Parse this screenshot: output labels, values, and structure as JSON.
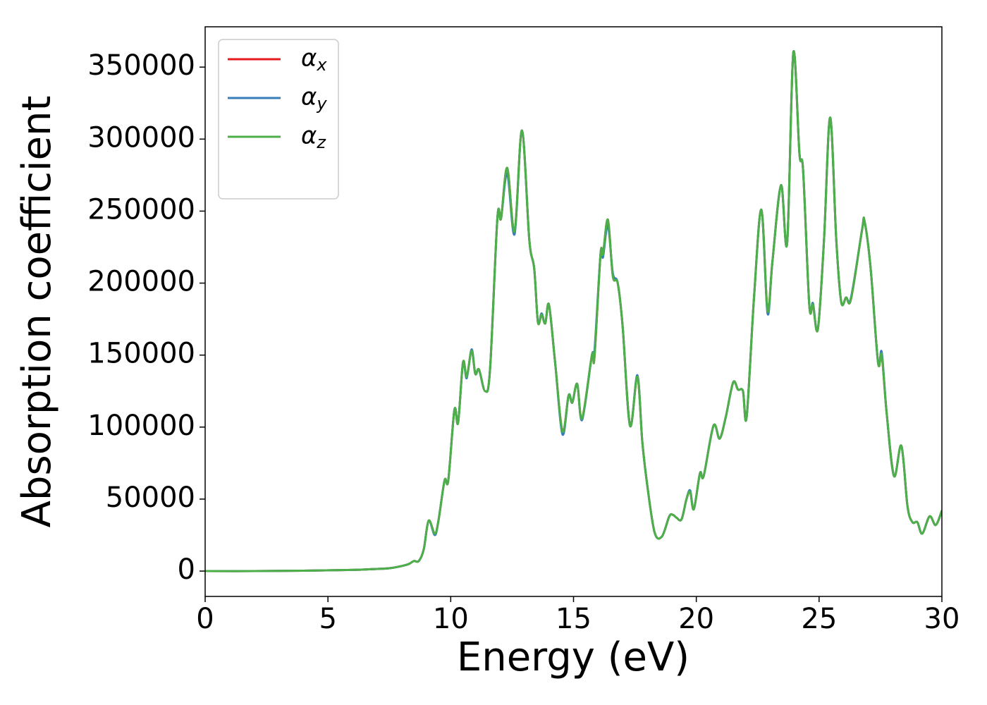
{
  "chart_data": {
    "type": "line",
    "xlabel": "Energy (eV)",
    "ylabel": "Absorption coefficient",
    "x": [
      0,
      2,
      4,
      6,
      7,
      7.5,
      8,
      8.3,
      8.5,
      8.7,
      8.9,
      9.1,
      9.35,
      9.5,
      9.75,
      9.9,
      10.15,
      10.3,
      10.5,
      10.65,
      10.85,
      11.0,
      11.15,
      11.4,
      11.6,
      11.9,
      12.05,
      12.3,
      12.6,
      12.9,
      13.2,
      13.4,
      13.55,
      13.7,
      13.85,
      14.0,
      14.25,
      14.55,
      14.8,
      14.95,
      15.15,
      15.35,
      15.75,
      15.85,
      16.1,
      16.2,
      16.4,
      16.6,
      16.8,
      17.0,
      17.3,
      17.6,
      17.8,
      18.0,
      18.3,
      18.6,
      18.9,
      19.05,
      19.2,
      19.4,
      19.6,
      19.75,
      19.9,
      20.15,
      20.3,
      20.7,
      20.95,
      21.2,
      21.5,
      21.7,
      21.9,
      22.05,
      22.35,
      22.65,
      22.9,
      23.1,
      23.45,
      23.7,
      23.95,
      24.2,
      24.35,
      24.6,
      24.75,
      24.95,
      25.2,
      25.45,
      25.7,
      25.9,
      26.1,
      26.3,
      26.75,
      26.85,
      27.1,
      27.4,
      27.55,
      27.75,
      28.05,
      28.35,
      28.6,
      28.8,
      29.0,
      29.2,
      29.5,
      29.75,
      30.0
    ],
    "series": [
      {
        "name": "αx",
        "color": "#e41a1c",
        "values": [
          0,
          0,
          300,
          800,
          1500,
          2000,
          3500,
          5000,
          7000,
          7000,
          15000,
          35000,
          26000,
          35000,
          63000,
          63000,
          112000,
          103000,
          145000,
          135000,
          153000,
          137000,
          140000,
          125000,
          140000,
          245000,
          245000,
          280000,
          236000,
          306000,
          230000,
          210000,
          173000,
          178000,
          172000,
          185000,
          145000,
          97000,
          122000,
          117000,
          130000,
          106000,
          150000,
          148000,
          220000,
          220000,
          244000,
          205000,
          200000,
          170000,
          101000,
          135000,
          90000,
          60000,
          27000,
          24000,
          38000,
          39000,
          37000,
          36000,
          50000,
          55000,
          43000,
          68000,
          66000,
          101000,
          92000,
          107000,
          131000,
          126000,
          125000,
          107000,
          190000,
          251000,
          181000,
          215000,
          268000,
          228000,
          360000,
          290000,
          278000,
          185000,
          185000,
          168000,
          230000,
          315000,
          230000,
          187000,
          190000,
          189000,
          237000,
          243000,
          210000,
          145000,
          150000,
          110000,
          66000,
          87000,
          45000,
          34000,
          34000,
          26000,
          38000,
          32000,
          42000
        ]
      },
      {
        "name": "αy",
        "color": "#377eb8",
        "values": [
          0,
          0,
          300,
          800,
          1500,
          2000,
          3500,
          5000,
          7000,
          7000,
          15000,
          35000,
          25000,
          35000,
          63000,
          63000,
          112000,
          103000,
          145000,
          134000,
          154000,
          137000,
          140000,
          125000,
          140000,
          245000,
          245000,
          276000,
          234000,
          306000,
          230000,
          210000,
          173000,
          179000,
          172000,
          185000,
          145000,
          95000,
          122000,
          117000,
          130000,
          105000,
          150000,
          152000,
          220000,
          218000,
          240000,
          207000,
          200000,
          170000,
          101000,
          136000,
          90000,
          60000,
          27000,
          24000,
          38000,
          39000,
          37000,
          36000,
          50000,
          56000,
          43000,
          68000,
          66000,
          101000,
          92000,
          107000,
          131000,
          126000,
          125000,
          107000,
          190000,
          251000,
          179000,
          215000,
          268000,
          228000,
          360000,
          290000,
          278000,
          185000,
          186000,
          168000,
          230000,
          315000,
          230000,
          187000,
          190000,
          190000,
          237000,
          243000,
          210000,
          145000,
          152000,
          110000,
          66000,
          87000,
          45000,
          34000,
          34000,
          26000,
          38000,
          32000,
          42000
        ]
      },
      {
        "name": "αz",
        "color": "#4daf4a",
        "values": [
          0,
          0,
          300,
          800,
          1500,
          2000,
          3500,
          5000,
          7000,
          7000,
          15000,
          35000,
          26000,
          35000,
          63000,
          63000,
          112000,
          103000,
          145000,
          135000,
          153000,
          137000,
          140000,
          125000,
          140000,
          245000,
          245000,
          280000,
          236000,
          306000,
          230000,
          210000,
          173000,
          178000,
          172000,
          185000,
          145000,
          97000,
          122000,
          117000,
          130000,
          106000,
          150000,
          148000,
          220000,
          220000,
          244000,
          205000,
          200000,
          170000,
          101000,
          135000,
          90000,
          60000,
          27000,
          24000,
          38000,
          39000,
          37000,
          36000,
          50000,
          55000,
          43000,
          68000,
          66000,
          101000,
          92000,
          107000,
          131000,
          126000,
          125000,
          107000,
          190000,
          251000,
          181000,
          215000,
          268000,
          228000,
          360000,
          290000,
          278000,
          185000,
          185000,
          168000,
          230000,
          315000,
          230000,
          187000,
          190000,
          189000,
          237000,
          243000,
          210000,
          145000,
          150000,
          110000,
          66000,
          87000,
          45000,
          34000,
          34000,
          26000,
          38000,
          32000,
          42000
        ]
      }
    ],
    "xlim": [
      0,
      30
    ],
    "xticks": [
      0,
      5,
      10,
      15,
      20,
      25,
      30
    ],
    "ylim": [
      -17600,
      378000
    ],
    "yticks": [
      0,
      50000,
      100000,
      150000,
      200000,
      250000,
      300000,
      350000
    ],
    "grid": false,
    "legend": "upper left"
  }
}
